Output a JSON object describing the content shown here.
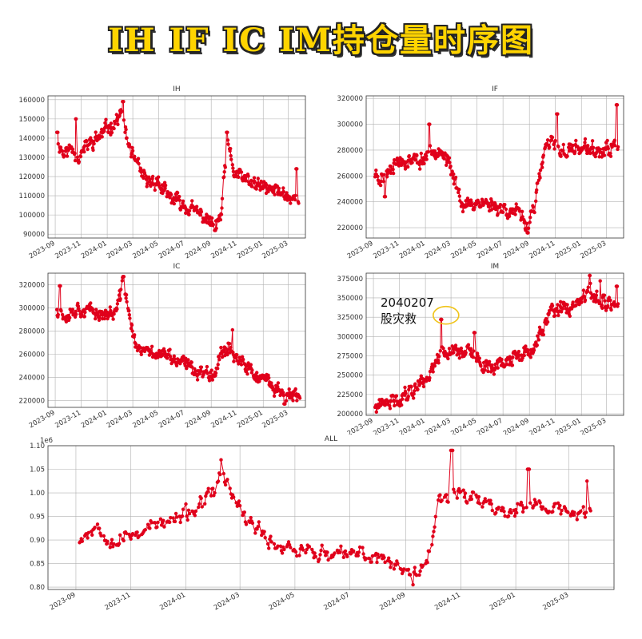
{
  "page": {
    "title": "IH IF IC IM持仓量时序图"
  },
  "annotation": {
    "date_text": "2040207",
    "label": "股灾救",
    "circle_x": "2024-02-07",
    "circle_y": 327500
  },
  "chart_data": [
    {
      "type": "line",
      "title": "IH",
      "x_range": [
        "2023-08-15",
        "2025-04-10"
      ],
      "ylim": [
        88000,
        162000
      ],
      "yticks": [
        90000,
        100000,
        110000,
        120000,
        130000,
        140000,
        150000,
        160000
      ],
      "ytick_labels": [
        "90000",
        "100000",
        "110000",
        "120000",
        "130000",
        "140000",
        "150000",
        "160000"
      ],
      "xticks": [
        "2023-09-01",
        "2023-11-01",
        "2024-01-01",
        "2024-03-01",
        "2024-05-01",
        "2024-07-01",
        "2024-09-01",
        "2024-11-01",
        "2025-01-01",
        "2025-03-01"
      ],
      "xtick_labels": [
        "2023-09",
        "2023-11",
        "2024-01",
        "2024-03",
        "2024-05",
        "2024-07",
        "2024-09",
        "2024-11",
        "2025-01",
        "2025-03"
      ],
      "grid": true,
      "color": "#e0001b",
      "keypoints": [
        [
          "2023-09-05",
          140000
        ],
        [
          "2023-09-20",
          132000
        ],
        [
          "2023-10-10",
          135000
        ],
        [
          "2023-10-25",
          130000
        ],
        [
          "2023-11-15",
          136000
        ],
        [
          "2023-12-10",
          140000
        ],
        [
          "2024-01-01",
          145000
        ],
        [
          "2024-01-25",
          150000
        ],
        [
          "2024-02-05",
          153000
        ],
        [
          "2024-02-15",
          140000
        ],
        [
          "2024-03-05",
          128000
        ],
        [
          "2024-04-01",
          117000
        ],
        [
          "2024-04-25",
          118000
        ],
        [
          "2024-05-20",
          110000
        ],
        [
          "2024-06-15",
          107000
        ],
        [
          "2024-07-15",
          103000
        ],
        [
          "2024-08-15",
          99000
        ],
        [
          "2024-09-10",
          94000
        ],
        [
          "2024-09-25",
          100000
        ],
        [
          "2024-10-08",
          138000
        ],
        [
          "2024-10-25",
          122000
        ],
        [
          "2024-11-20",
          118000
        ],
        [
          "2024-12-20",
          115000
        ],
        [
          "2025-01-20",
          113000
        ],
        [
          "2025-02-15",
          112000
        ],
        [
          "2025-03-10",
          108000
        ],
        [
          "2025-03-25",
          110000
        ]
      ],
      "spikes": [
        [
          "2023-09-06",
          143000
        ],
        [
          "2023-10-20",
          150000
        ],
        [
          "2024-02-07",
          159000
        ],
        [
          "2024-10-08",
          143000
        ],
        [
          "2025-03-20",
          124000
        ],
        [
          "2024-09-10",
          92000
        ]
      ]
    },
    {
      "type": "line",
      "title": "IF",
      "x_range": [
        "2023-08-15",
        "2025-04-10"
      ],
      "ylim": [
        212000,
        322000
      ],
      "yticks": [
        220000,
        240000,
        260000,
        280000,
        300000,
        320000
      ],
      "ytick_labels": [
        "220000",
        "240000",
        "260000",
        "280000",
        "300000",
        "320000"
      ],
      "xticks": [
        "2023-09-01",
        "2023-11-01",
        "2024-01-01",
        "2024-03-01",
        "2024-05-01",
        "2024-07-01",
        "2024-09-01",
        "2024-11-01",
        "2025-01-01",
        "2025-03-01"
      ],
      "xtick_labels": [
        "2023-09",
        "2023-11",
        "2024-01",
        "2024-03",
        "2024-05",
        "2024-07",
        "2024-09",
        "2024-11",
        "2025-01",
        "2025-03"
      ],
      "grid": true,
      "color": "#e0001b",
      "keypoints": [
        [
          "2023-09-05",
          262000
        ],
        [
          "2023-09-25",
          258000
        ],
        [
          "2023-10-15",
          270000
        ],
        [
          "2023-11-15",
          272000
        ],
        [
          "2023-12-20",
          272000
        ],
        [
          "2024-01-20",
          280000
        ],
        [
          "2024-02-05",
          282000
        ],
        [
          "2024-02-25",
          268000
        ],
        [
          "2024-03-15",
          252000
        ],
        [
          "2024-04-01",
          236000
        ],
        [
          "2024-05-01",
          240000
        ],
        [
          "2024-06-01",
          238000
        ],
        [
          "2024-07-01",
          235000
        ],
        [
          "2024-08-01",
          232000
        ],
        [
          "2024-08-25",
          222000
        ],
        [
          "2024-09-15",
          240000
        ],
        [
          "2024-10-08",
          282000
        ],
        [
          "2024-10-25",
          285000
        ],
        [
          "2024-11-20",
          278000
        ],
        [
          "2024-12-20",
          282000
        ],
        [
          "2025-01-25",
          280000
        ],
        [
          "2025-02-20",
          278000
        ],
        [
          "2025-03-15",
          282000
        ],
        [
          "2025-03-28",
          285000
        ]
      ],
      "spikes": [
        [
          "2023-09-28",
          244000
        ],
        [
          "2024-01-10",
          300000
        ],
        [
          "2024-08-28",
          216000
        ],
        [
          "2024-11-05",
          308000
        ],
        [
          "2025-03-25",
          315000
        ]
      ]
    },
    {
      "type": "line",
      "title": "IC",
      "x_range": [
        "2023-08-15",
        "2025-04-10"
      ],
      "ylim": [
        214000,
        330000
      ],
      "yticks": [
        220000,
        240000,
        260000,
        280000,
        300000,
        320000
      ],
      "ytick_labels": [
        "220000",
        "240000",
        "260000",
        "280000",
        "300000",
        "320000"
      ],
      "xticks": [
        "2023-09-01",
        "2023-11-01",
        "2024-01-01",
        "2024-03-01",
        "2024-05-01",
        "2024-07-01",
        "2024-09-01",
        "2024-11-01",
        "2025-01-01",
        "2025-03-01"
      ],
      "xtick_labels": [
        "2023-09",
        "2023-11",
        "2024-01",
        "2024-03",
        "2024-05",
        "2024-07",
        "2024-09",
        "2024-11",
        "2025-01",
        "2025-03"
      ],
      "grid": true,
      "color": "#e0001b",
      "keypoints": [
        [
          "2023-09-05",
          300000
        ],
        [
          "2023-09-25",
          293000
        ],
        [
          "2023-10-20",
          300000
        ],
        [
          "2023-11-20",
          297000
        ],
        [
          "2023-12-20",
          295000
        ],
        [
          "2024-01-20",
          295000
        ],
        [
          "2024-02-01",
          310000
        ],
        [
          "2024-02-08",
          326000
        ],
        [
          "2024-02-18",
          302000
        ],
        [
          "2024-02-28",
          280000
        ],
        [
          "2024-03-15",
          262000
        ],
        [
          "2024-04-10",
          262000
        ],
        [
          "2024-05-10",
          260000
        ],
        [
          "2024-06-10",
          254000
        ],
        [
          "2024-07-10",
          250000
        ],
        [
          "2024-08-10",
          244000
        ],
        [
          "2024-09-10",
          245000
        ],
        [
          "2024-09-28",
          265000
        ],
        [
          "2024-10-15",
          265000
        ],
        [
          "2024-11-10",
          252000
        ],
        [
          "2024-12-10",
          243000
        ],
        [
          "2025-01-10",
          235000
        ],
        [
          "2025-02-10",
          228000
        ],
        [
          "2025-03-01",
          224000
        ],
        [
          "2025-03-28",
          222000
        ]
      ],
      "spikes": [
        [
          "2023-09-12",
          319000
        ],
        [
          "2024-02-08",
          327000
        ],
        [
          "2024-10-20",
          281000
        ],
        [
          "2025-02-20",
          217000
        ]
      ]
    },
    {
      "type": "line",
      "title": "IM",
      "x_range": [
        "2023-08-15",
        "2025-04-10"
      ],
      "ylim": [
        198000,
        382000
      ],
      "yticks": [
        200000,
        225000,
        250000,
        275000,
        300000,
        325000,
        350000,
        375000
      ],
      "ytick_labels": [
        "200000",
        "225000",
        "250000",
        "275000",
        "300000",
        "325000",
        "350000",
        "375000"
      ],
      "xticks": [
        "2023-09-01",
        "2023-11-01",
        "2024-01-01",
        "2024-03-01",
        "2024-05-01",
        "2024-07-01",
        "2024-09-01",
        "2024-11-01",
        "2025-01-01",
        "2025-03-01"
      ],
      "xtick_labels": [
        "2023-09",
        "2023-11",
        "2024-01",
        "2024-03",
        "2024-05",
        "2024-07",
        "2024-09",
        "2024-11",
        "2025-01",
        "2025-03"
      ],
      "grid": true,
      "color": "#e0001b",
      "keypoints": [
        [
          "2023-09-05",
          208000
        ],
        [
          "2023-10-05",
          212000
        ],
        [
          "2023-11-05",
          222000
        ],
        [
          "2023-12-05",
          233000
        ],
        [
          "2024-01-05",
          248000
        ],
        [
          "2024-01-25",
          265000
        ],
        [
          "2024-02-05",
          285000
        ],
        [
          "2024-02-20",
          280000
        ],
        [
          "2024-03-10",
          283000
        ],
        [
          "2024-04-10",
          282000
        ],
        [
          "2024-05-10",
          265000
        ],
        [
          "2024-06-10",
          262000
        ],
        [
          "2024-07-10",
          268000
        ],
        [
          "2024-08-10",
          275000
        ],
        [
          "2024-09-10",
          280000
        ],
        [
          "2024-09-30",
          310000
        ],
        [
          "2024-10-20",
          330000
        ],
        [
          "2024-11-20",
          335000
        ],
        [
          "2024-12-20",
          338000
        ],
        [
          "2025-01-15",
          355000
        ],
        [
          "2025-02-10",
          348000
        ],
        [
          "2025-03-10",
          343000
        ],
        [
          "2025-03-28",
          338000
        ]
      ],
      "spikes": [
        [
          "2024-02-07",
          322000
        ],
        [
          "2024-04-25",
          305000
        ],
        [
          "2025-01-20",
          379000
        ],
        [
          "2025-02-15",
          372000
        ],
        [
          "2025-03-25",
          365000
        ]
      ]
    },
    {
      "type": "line",
      "title": "ALL",
      "scale_label": "1e6",
      "x_range": [
        "2023-08-01",
        "2025-04-20"
      ],
      "ylim": [
        0.795,
        1.1
      ],
      "yticks": [
        0.8,
        0.85,
        0.9,
        0.95,
        1.0,
        1.05,
        1.1
      ],
      "ytick_labels": [
        "0.80",
        "0.85",
        "0.90",
        "0.95",
        "1.00",
        "1.05",
        "1.10"
      ],
      "xticks": [
        "2023-09-01",
        "2023-11-01",
        "2024-01-01",
        "2024-03-01",
        "2024-05-01",
        "2024-07-01",
        "2024-09-01",
        "2024-11-01",
        "2025-01-01",
        "2025-03-01"
      ],
      "xtick_labels": [
        "2023-09",
        "2023-11",
        "2024-01",
        "2024-03",
        "2024-05",
        "2024-07",
        "2024-09",
        "2024-11",
        "2025-01",
        "2025-03"
      ],
      "grid": true,
      "color": "#e0001b",
      "keypoints": [
        [
          "2023-09-05",
          0.905
        ],
        [
          "2023-09-25",
          0.93
        ],
        [
          "2023-10-15",
          0.895
        ],
        [
          "2023-11-05",
          0.915
        ],
        [
          "2023-11-25",
          0.93
        ],
        [
          "2023-12-20",
          0.94
        ],
        [
          "2024-01-15",
          0.97
        ],
        [
          "2024-02-01",
          1.0
        ],
        [
          "2024-02-08",
          1.04
        ],
        [
          "2024-02-18",
          1.01
        ],
        [
          "2024-03-01",
          0.96
        ],
        [
          "2024-03-20",
          0.92
        ],
        [
          "2024-04-10",
          0.89
        ],
        [
          "2024-05-10",
          0.88
        ],
        [
          "2024-06-10",
          0.865
        ],
        [
          "2024-07-10",
          0.87
        ],
        [
          "2024-08-10",
          0.86
        ],
        [
          "2024-09-05",
          0.83
        ],
        [
          "2024-09-25",
          0.86
        ],
        [
          "2024-10-08",
          0.98
        ],
        [
          "2024-10-25",
          1.01
        ],
        [
          "2024-11-20",
          0.985
        ],
        [
          "2024-12-20",
          0.96
        ],
        [
          "2025-01-20",
          0.975
        ],
        [
          "2025-02-15",
          0.965
        ],
        [
          "2025-03-10",
          0.955
        ],
        [
          "2025-03-25",
          0.96
        ]
      ],
      "spikes": [
        [
          "2024-02-10",
          1.07
        ],
        [
          "2024-10-22",
          1.09
        ],
        [
          "2024-09-08",
          0.805
        ],
        [
          "2025-01-15",
          1.05
        ],
        [
          "2025-03-22",
          1.025
        ]
      ]
    }
  ]
}
